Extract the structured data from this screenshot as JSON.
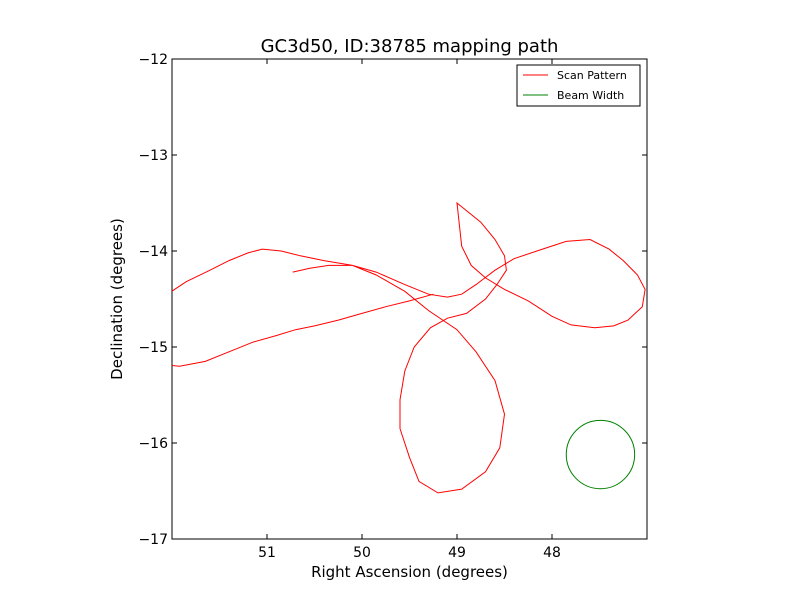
{
  "chart_data": {
    "type": "line",
    "title": "GC3d50, ID:38785 mapping path",
    "xlabel": "Right Ascension (degrees)",
    "ylabel": "Declination (degrees)",
    "xlim": [
      52.0,
      47.0
    ],
    "ylim": [
      -17,
      -12
    ],
    "x_inverted": true,
    "xticks": [
      51,
      50,
      49,
      48
    ],
    "xtick_labels": [
      "51",
      "50",
      "49",
      "48"
    ],
    "yticks": [
      -12,
      -13,
      -14,
      -15,
      -16,
      -17
    ],
    "ytick_labels": [
      "−12",
      "−13",
      "−14",
      "−15",
      "−16",
      "−17"
    ],
    "grid": false,
    "legend_position": "top-right",
    "series": [
      {
        "name": "Scan Pattern",
        "color": "#ff0000",
        "x": [
          50.73,
          50.55,
          50.35,
          50.1,
          49.85,
          49.55,
          49.3,
          49.1,
          48.95,
          48.8,
          48.6,
          48.4,
          48.1,
          47.85,
          47.6,
          47.4,
          47.25,
          47.1,
          47.02,
          47.05,
          47.2,
          47.35,
          47.55,
          47.8,
          48.0,
          48.25,
          48.5,
          48.7,
          48.85,
          48.95,
          49.0,
          48.75,
          48.6,
          48.5,
          48.48,
          48.58,
          48.7,
          48.9,
          49.1,
          49.28,
          49.45,
          49.55,
          49.6,
          49.6,
          49.5,
          49.4,
          49.2,
          48.95,
          48.7,
          48.55,
          48.5,
          48.6,
          48.8,
          49.0,
          49.3,
          49.55,
          49.85,
          50.1,
          50.4,
          50.65,
          50.85,
          51.05,
          51.2,
          51.4,
          51.6,
          51.85,
          52.05,
          52.25,
          52.35,
          52.37,
          52.3,
          52.12,
          51.92,
          51.65,
          51.4,
          51.15,
          50.9,
          50.7,
          50.5,
          50.25,
          50.0,
          49.75,
          49.5,
          49.25
        ],
        "y": [
          -14.22,
          -14.18,
          -14.15,
          -14.15,
          -14.22,
          -14.35,
          -14.45,
          -14.48,
          -14.45,
          -14.35,
          -14.2,
          -14.08,
          -13.98,
          -13.9,
          -13.88,
          -13.98,
          -14.1,
          -14.25,
          -14.4,
          -14.58,
          -14.72,
          -14.78,
          -14.8,
          -14.77,
          -14.68,
          -14.52,
          -14.4,
          -14.28,
          -14.15,
          -13.95,
          -13.5,
          -13.7,
          -13.88,
          -14.05,
          -14.2,
          -14.35,
          -14.5,
          -14.65,
          -14.7,
          -14.8,
          -15.0,
          -15.25,
          -15.55,
          -15.85,
          -16.15,
          -16.4,
          -16.52,
          -16.48,
          -16.3,
          -16.05,
          -15.7,
          -15.35,
          -15.05,
          -14.82,
          -14.62,
          -14.42,
          -14.25,
          -14.15,
          -14.1,
          -14.05,
          -14.0,
          -13.98,
          -14.02,
          -14.1,
          -14.2,
          -14.32,
          -14.45,
          -14.62,
          -14.78,
          -14.95,
          -15.1,
          -15.18,
          -15.2,
          -15.15,
          -15.05,
          -14.95,
          -14.88,
          -14.82,
          -14.78,
          -14.72,
          -14.65,
          -14.58,
          -14.52,
          -14.45
        ]
      },
      {
        "name": "Beam Width",
        "color": "#008000",
        "center": [
          47.49,
          -16.12
        ],
        "radius_deg": 0.36
      }
    ]
  }
}
